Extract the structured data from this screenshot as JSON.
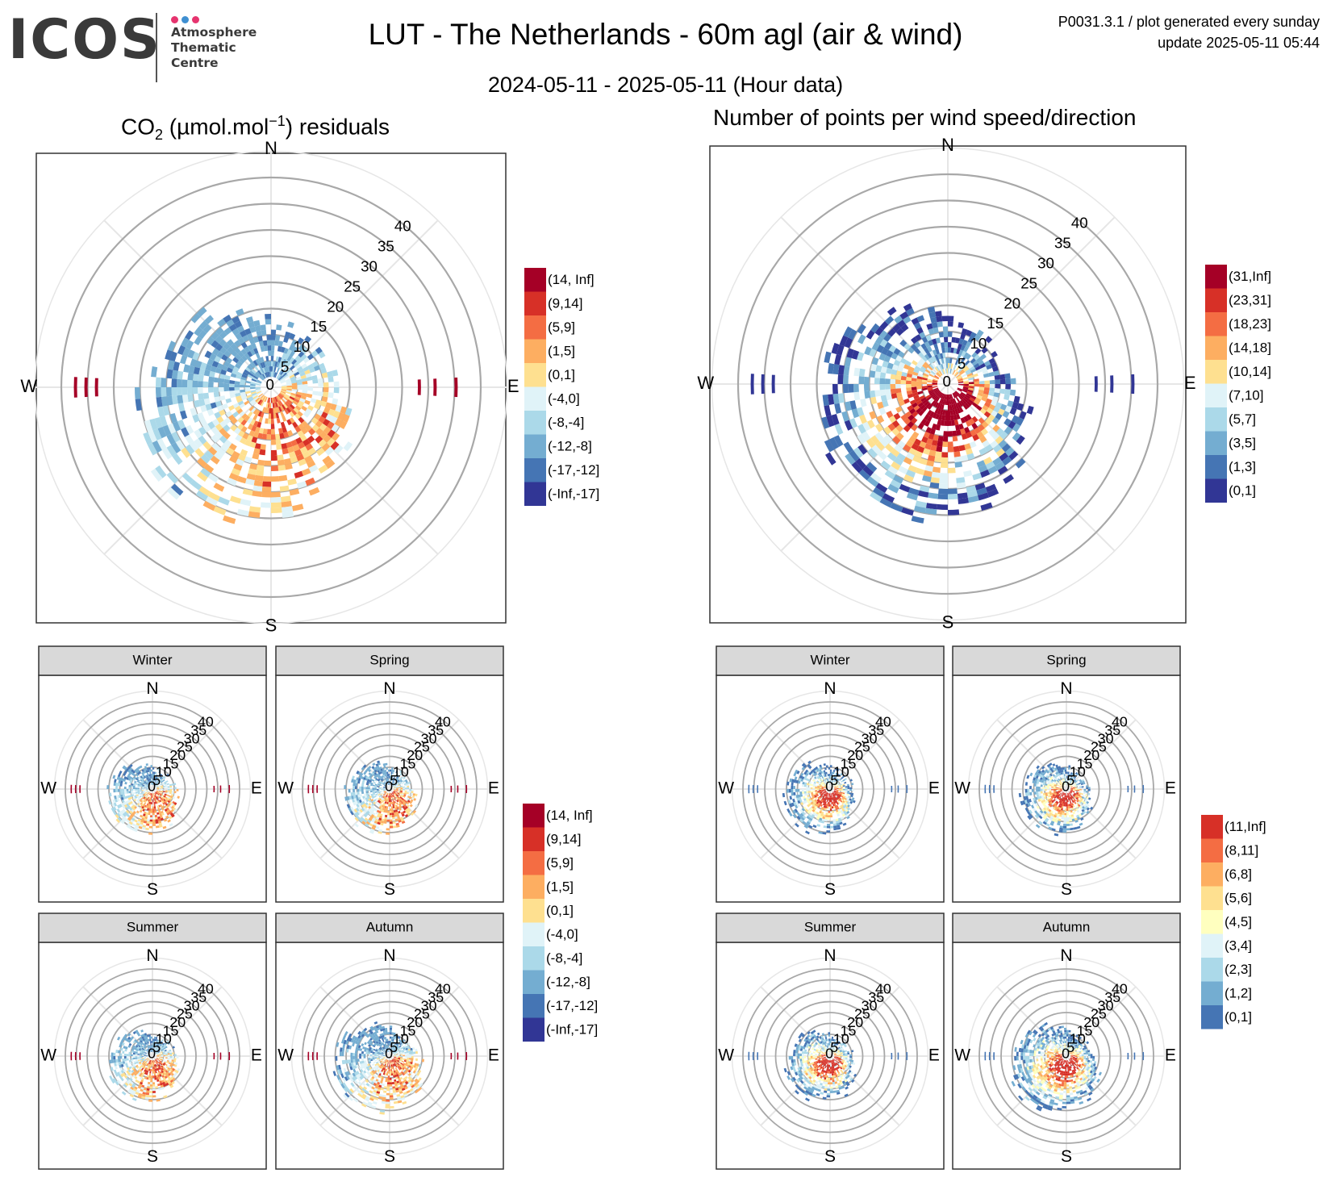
{
  "header": {
    "logo_text": "ICOS",
    "logo_lines": [
      "Atmosphere",
      "Thematic",
      "Centre"
    ],
    "logo_dot_colors": [
      "#e6346f",
      "#3f8fd1",
      "#e6346f"
    ],
    "title": "LUT - The Netherlands - 60m agl (air & wind)",
    "subtitle": "2024-05-11 - 2025-05-11 (Hour data)",
    "corner_line1": "P0031.3.1 / plot generated every sunday",
    "corner_line2": "update  2025-05-11 05:44"
  },
  "panels": {
    "residuals_title_main": "CO",
    "residuals_title_sub": "2",
    "residuals_title_unit": " (µmol.mol",
    "residuals_title_sup": "−1",
    "residuals_title_tail": ") residuals",
    "points_title": "Number of points per wind speed/direction"
  },
  "chart_data": [
    {
      "id": "co2-residuals-all",
      "type": "heatmap",
      "coord": "polar",
      "title": "CO2 (µmol.mol-1) residuals",
      "directions": [
        "N",
        "E",
        "S",
        "W"
      ],
      "radial_ticks": [
        0,
        5,
        10,
        15,
        20,
        25,
        30,
        35,
        40
      ],
      "legend": [
        "(14, Inf]",
        "(9,14]",
        "(5,9]",
        "(1,5]",
        "(0,1]",
        "(-4,0]",
        "(-8,-4]",
        "(-12,-8]",
        "(-17,-12]",
        "(-Inf,-17]"
      ],
      "legend_colors": [
        "#a50026",
        "#d73027",
        "#f46d43",
        "#fdae61",
        "#fee090",
        "#e0f3f8",
        "#abd9e9",
        "#74add1",
        "#4575b4",
        "#313695"
      ]
    },
    {
      "id": "points-all",
      "type": "heatmap",
      "coord": "polar",
      "title": "Number of points per wind speed/direction",
      "directions": [
        "N",
        "E",
        "S",
        "W"
      ],
      "radial_ticks": [
        0,
        5,
        10,
        15,
        20,
        25,
        30,
        35,
        40
      ],
      "legend": [
        "(31,Inf]",
        "(23,31]",
        "(18,23]",
        "(14,18]",
        "(10,14]",
        "(7,10]",
        "(5,7]",
        "(3,5]",
        "(1,3]",
        "(0,1]"
      ],
      "legend_colors": [
        "#a50026",
        "#d73027",
        "#f46d43",
        "#fdae61",
        "#fee090",
        "#e0f3f8",
        "#abd9e9",
        "#74add1",
        "#4575b4",
        "#313695"
      ]
    },
    {
      "id": "co2-residuals-seasons",
      "type": "heatmap",
      "coord": "polar",
      "facets": [
        "Winter",
        "Spring",
        "Summer",
        "Autumn"
      ],
      "directions": [
        "N",
        "E",
        "S",
        "W"
      ],
      "radial_ticks": [
        0,
        5,
        10,
        15,
        20,
        25,
        30,
        35,
        40
      ],
      "legend": [
        "(14, Inf]",
        "(9,14]",
        "(5,9]",
        "(1,5]",
        "(0,1]",
        "(-4,0]",
        "(-8,-4]",
        "(-12,-8]",
        "(-17,-12]",
        "(-Inf,-17]"
      ],
      "legend_colors": [
        "#a50026",
        "#d73027",
        "#f46d43",
        "#fdae61",
        "#fee090",
        "#e0f3f8",
        "#abd9e9",
        "#74add1",
        "#4575b4",
        "#313695"
      ]
    },
    {
      "id": "points-seasons",
      "type": "heatmap",
      "coord": "polar",
      "facets": [
        "Winter",
        "Spring",
        "Summer",
        "Autumn"
      ],
      "directions": [
        "N",
        "E",
        "S",
        "W"
      ],
      "radial_ticks": [
        0,
        5,
        10,
        15,
        20,
        25,
        30,
        35,
        40
      ],
      "legend": [
        "(11,Inf]",
        "(8,11]",
        "(6,8]",
        "(5,6]",
        "(4,5]",
        "(3,4]",
        "(2,3]",
        "(1,2]",
        "(0,1]"
      ],
      "legend_colors": [
        "#d73027",
        "#f46d43",
        "#fdae61",
        "#fee090",
        "#ffffbf",
        "#e0f3f8",
        "#abd9e9",
        "#74add1",
        "#4575b4"
      ]
    }
  ]
}
